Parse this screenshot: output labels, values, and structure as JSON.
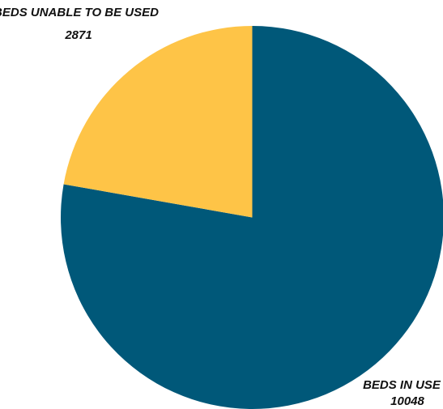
{
  "chart_data": {
    "type": "pie",
    "slices": [
      {
        "label": "BEDS IN USE",
        "value": 10048,
        "value_text": "10048",
        "color": "#005879"
      },
      {
        "label": "BEDS UNABLE TO BE USED",
        "value": 2871,
        "value_text": "2871",
        "color": "#FEC447"
      }
    ],
    "start": "12 o'clock",
    "direction": "clockwise",
    "legend": "none"
  }
}
